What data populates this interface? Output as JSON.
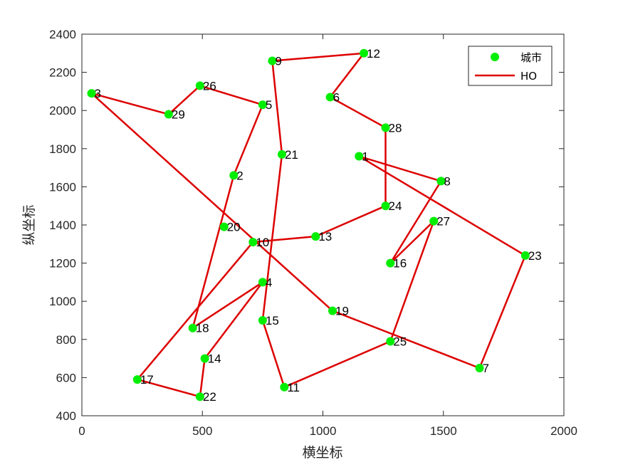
{
  "chart_data": {
    "type": "scatter",
    "xlabel": "横坐标",
    "ylabel": "纵坐标",
    "xlim": [
      0,
      2000
    ],
    "ylim": [
      400,
      2400
    ],
    "xticks": [
      0,
      500,
      1000,
      1500,
      2000
    ],
    "yticks": [
      400,
      600,
      800,
      1000,
      1200,
      1400,
      1600,
      1800,
      2000,
      2200,
      2400
    ],
    "grid": false,
    "legend_position": "top-right",
    "colors": {
      "points": "#00ee00",
      "route": "#dd0000",
      "axes": "#262626"
    },
    "series": [
      {
        "name": "城市",
        "marker": "circle",
        "points": [
          {
            "label": "1",
            "x": 1150,
            "y": 1760
          },
          {
            "label": "2",
            "x": 630,
            "y": 1660
          },
          {
            "label": "3",
            "x": 40,
            "y": 2090
          },
          {
            "label": "4",
            "x": 750,
            "y": 1100
          },
          {
            "label": "5",
            "x": 750,
            "y": 2030
          },
          {
            "label": "6",
            "x": 1030,
            "y": 2070
          },
          {
            "label": "7",
            "x": 1650,
            "y": 650
          },
          {
            "label": "8",
            "x": 1490,
            "y": 1630
          },
          {
            "label": "9",
            "x": 790,
            "y": 2260
          },
          {
            "label": "10",
            "x": 710,
            "y": 1310
          },
          {
            "label": "11",
            "x": 840,
            "y": 550
          },
          {
            "label": "12",
            "x": 1170,
            "y": 2300
          },
          {
            "label": "13",
            "x": 970,
            "y": 1340
          },
          {
            "label": "14",
            "x": 510,
            "y": 700
          },
          {
            "label": "15",
            "x": 750,
            "y": 900
          },
          {
            "label": "16",
            "x": 1280,
            "y": 1200
          },
          {
            "label": "17",
            "x": 230,
            "y": 590
          },
          {
            "label": "18",
            "x": 460,
            "y": 860
          },
          {
            "label": "19",
            "x": 1040,
            "y": 950
          },
          {
            "label": "20",
            "x": 590,
            "y": 1390
          },
          {
            "label": "21",
            "x": 830,
            "y": 1770
          },
          {
            "label": "22",
            "x": 490,
            "y": 500
          },
          {
            "label": "23",
            "x": 1840,
            "y": 1240
          },
          {
            "label": "24",
            "x": 1260,
            "y": 1500
          },
          {
            "label": "25",
            "x": 1280,
            "y": 790
          },
          {
            "label": "26",
            "x": 490,
            "y": 2130
          },
          {
            "label": "27",
            "x": 1460,
            "y": 1420
          },
          {
            "label": "28",
            "x": 1260,
            "y": 1910
          },
          {
            "label": "29",
            "x": 360,
            "y": 1980
          }
        ]
      },
      {
        "name": "HO",
        "line": "solid",
        "route": [
          1,
          8,
          16,
          27,
          25,
          11,
          15,
          21,
          9,
          12,
          6,
          28,
          24,
          13,
          10,
          17,
          22,
          14,
          4,
          18,
          2,
          5,
          26,
          29,
          3,
          19,
          7,
          23,
          1
        ]
      }
    ]
  }
}
